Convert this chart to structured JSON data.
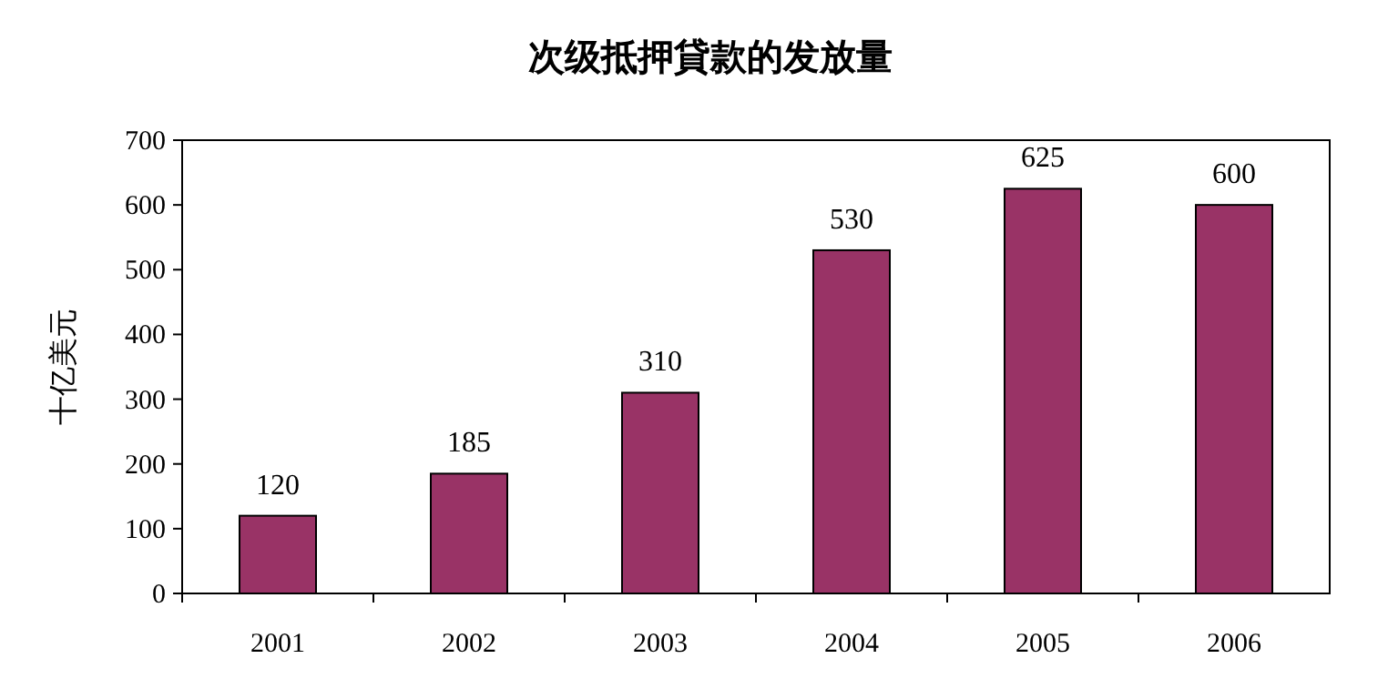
{
  "chart_data": {
    "type": "bar",
    "title": "次级抵押貸款的发放量",
    "ylabel": "十亿美元",
    "categories": [
      "2001",
      "2002",
      "2003",
      "2004",
      "2005",
      "2006"
    ],
    "values": [
      120,
      185,
      310,
      530,
      625,
      600
    ],
    "color": "#993366",
    "ylim": [
      0,
      700
    ],
    "yticks": [
      0,
      100,
      200,
      300,
      400,
      500,
      600,
      700
    ],
    "data_labels": true,
    "grid": false
  }
}
